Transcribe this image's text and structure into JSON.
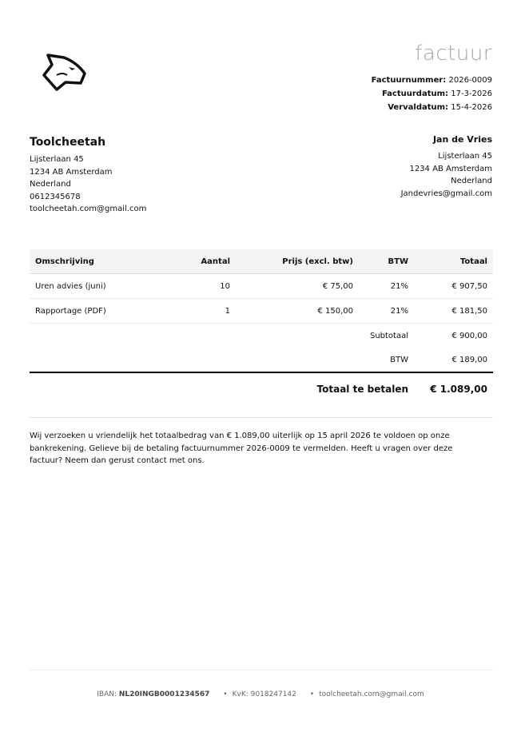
{
  "header": {
    "title": "factuur",
    "logo": "cheetah-head-logo",
    "meta": [
      {
        "label": "Factuurnummer:",
        "value": "2026-0009"
      },
      {
        "label": "Factuurdatum:",
        "value": "17-3-2026"
      },
      {
        "label": "Vervaldatum:",
        "value": "15-4-2026"
      }
    ]
  },
  "sender": {
    "name": "Toolcheetah",
    "lines": [
      "Lijsterlaan 45",
      "1234 AB Amsterdam",
      "Nederland",
      "0612345678",
      "toolcheetah.com@gmail.com"
    ]
  },
  "recipient": {
    "name": "Jan de Vries",
    "lines": [
      "Lijsterlaan 45",
      "1234 AB Amsterdam",
      "Nederland",
      "Jandevries@gmail.com"
    ]
  },
  "table": {
    "headers": [
      "Omschrijving",
      "Aantal",
      "Prijs (excl. btw)",
      "BTW",
      "Totaal"
    ],
    "rows": [
      [
        "Uren advies (juni)",
        "10",
        "€ 75,00",
        "21%",
        "€ 907,50"
      ],
      [
        "Rapportage (PDF)",
        "1",
        "€ 150,00",
        "21%",
        "€ 181,50"
      ]
    ],
    "subtotal": {
      "label": "Subtotaal",
      "value": "€ 900,00"
    },
    "vat": {
      "label": "BTW",
      "value": "€ 189,00"
    },
    "total": {
      "label": "Totaal te betalen",
      "value": "€ 1.089,00"
    }
  },
  "note": "Wij verzoeken u vriendelijk het totaalbedrag van € 1.089,00 uiterlijk op 15 april 2026 te voldoen op onze bankrekening. Gelieve bij de betaling factuurnummer 2026-0009 te vermelden. Heeft u vragen over deze factuur? Neem dan gerust contact met ons.",
  "footer": {
    "iban_label": "IBAN:",
    "iban": "NL20INGB0001234567",
    "kvk": "KvK: 9018247142",
    "email": "toolcheetah.com@gmail.com",
    "bullet": "•"
  }
}
